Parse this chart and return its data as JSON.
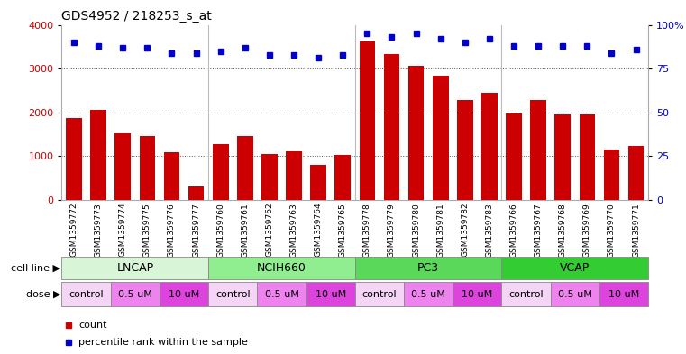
{
  "title": "GDS4952 / 218253_s_at",
  "samples": [
    "GSM1359772",
    "GSM1359773",
    "GSM1359774",
    "GSM1359775",
    "GSM1359776",
    "GSM1359777",
    "GSM1359760",
    "GSM1359761",
    "GSM1359762",
    "GSM1359763",
    "GSM1359764",
    "GSM1359765",
    "GSM1359778",
    "GSM1359779",
    "GSM1359780",
    "GSM1359781",
    "GSM1359782",
    "GSM1359783",
    "GSM1359766",
    "GSM1359767",
    "GSM1359768",
    "GSM1359769",
    "GSM1359770",
    "GSM1359771"
  ],
  "counts": [
    1880,
    2050,
    1520,
    1460,
    1100,
    300,
    1270,
    1460,
    1040,
    1110,
    800,
    1030,
    3620,
    3330,
    3070,
    2840,
    2280,
    2450,
    1980,
    2290,
    1950,
    1950,
    1160,
    1240
  ],
  "percentile_ranks": [
    90,
    88,
    87,
    87,
    84,
    84,
    85,
    87,
    83,
    83,
    81,
    83,
    95,
    93,
    95,
    92,
    90,
    92,
    88,
    88,
    88,
    88,
    84,
    86
  ],
  "cell_line_order": [
    "LNCAP",
    "NCIH660",
    "PC3",
    "VCAP"
  ],
  "cell_line_boundaries": [
    [
      0,
      6
    ],
    [
      6,
      12
    ],
    [
      12,
      18
    ],
    [
      18,
      24
    ]
  ],
  "cell_line_colors": [
    "#d8f5d8",
    "#90ee90",
    "#5ad85a",
    "#33cc33"
  ],
  "dose_groups": [
    {
      "label": "control",
      "start": 0,
      "end": 2
    },
    {
      "label": "0.5 uM",
      "start": 2,
      "end": 4
    },
    {
      "label": "10 uM",
      "start": 4,
      "end": 6
    },
    {
      "label": "control",
      "start": 6,
      "end": 8
    },
    {
      "label": "0.5 uM",
      "start": 8,
      "end": 10
    },
    {
      "label": "10 uM",
      "start": 10,
      "end": 12
    },
    {
      "label": "control",
      "start": 12,
      "end": 14
    },
    {
      "label": "0.5 uM",
      "start": 14,
      "end": 16
    },
    {
      "label": "10 uM",
      "start": 16,
      "end": 18
    },
    {
      "label": "control",
      "start": 18,
      "end": 20
    },
    {
      "label": "0.5 uM",
      "start": 20,
      "end": 22
    },
    {
      "label": "10 uM",
      "start": 22,
      "end": 24
    }
  ],
  "dose_colors": {
    "control": "#f5d5f5",
    "0.5 uM": "#ee82ee",
    "10 uM": "#dd44dd"
  },
  "bar_color": "#cc0000",
  "dot_color": "#0000cc",
  "ylim_left": [
    0,
    4000
  ],
  "ylim_right": [
    0,
    100
  ],
  "yticks_left": [
    0,
    1000,
    2000,
    3000,
    4000
  ],
  "yticks_right": [
    0,
    25,
    50,
    75,
    100
  ],
  "bg_color": "#ffffff"
}
